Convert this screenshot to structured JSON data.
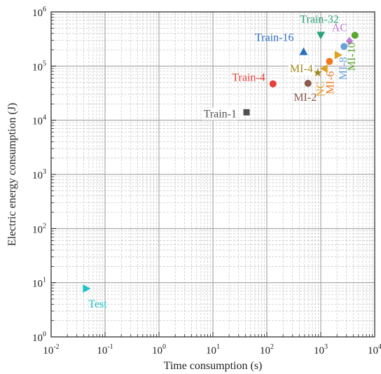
{
  "chart_data": {
    "type": "scatter",
    "title": "",
    "xlabel": "Time consumption (s)",
    "ylabel": "Electric energy consumption (J)",
    "xscale": "log",
    "yscale": "log",
    "xlim": [
      0.01,
      10000
    ],
    "ylim": [
      1,
      1000000
    ],
    "x_ticks": [
      {
        "base": "10",
        "exp": "-2"
      },
      {
        "base": "10",
        "exp": "-1"
      },
      {
        "base": "10",
        "exp": "0"
      },
      {
        "base": "10",
        "exp": "1"
      },
      {
        "base": "10",
        "exp": "2"
      },
      {
        "base": "10",
        "exp": "3"
      },
      {
        "base": "10",
        "exp": "4"
      }
    ],
    "y_ticks": [
      {
        "base": "10",
        "exp": "0"
      },
      {
        "base": "10",
        "exp": "1"
      },
      {
        "base": "10",
        "exp": "2"
      },
      {
        "base": "10",
        "exp": "3"
      },
      {
        "base": "10",
        "exp": "4"
      },
      {
        "base": "10",
        "exp": "5"
      },
      {
        "base": "10",
        "exp": "6"
      }
    ],
    "grid": "major solid, minor dashed",
    "points": [
      {
        "label": "Test",
        "x": 0.045,
        "y": 7.8,
        "color": "#20c4c8",
        "marker": "triangle-right"
      },
      {
        "label": "Train-1",
        "x": 42,
        "y": 14000,
        "color": "#505050",
        "marker": "square"
      },
      {
        "label": "Train-4",
        "x": 130,
        "y": 47000,
        "color": "#e8403a",
        "marker": "circle"
      },
      {
        "label": "MI-2",
        "x": 580,
        "y": 48000,
        "color": "#8a5a4a",
        "marker": "circle"
      },
      {
        "label": "Train-16",
        "x": 480,
        "y": 185000,
        "color": "#2a6fc0",
        "marker": "triangle-up"
      },
      {
        "label": "Train-32",
        "x": 1000,
        "y": 370000,
        "color": "#2aa37a",
        "marker": "triangle-down"
      },
      {
        "label": "MI-4",
        "x": 880,
        "y": 75000,
        "color": "#a08a20",
        "marker": "star"
      },
      {
        "label": "NC",
        "x": 1150,
        "y": 90000,
        "color": "#e0a020",
        "marker": "triangle-left"
      },
      {
        "label": "MI-6",
        "x": 1450,
        "y": 122000,
        "color": "#f07820",
        "marker": "circle"
      },
      {
        "label": "",
        "x": 2100,
        "y": 160000,
        "color": "#e0a020",
        "marker": "triangle-right"
      },
      {
        "label": "MI-8",
        "x": 2700,
        "y": 230000,
        "color": "#6aa0d8",
        "marker": "circle"
      },
      {
        "label": "AC",
        "x": 3400,
        "y": 290000,
        "color": "#c07ad8",
        "marker": "diamond"
      },
      {
        "label": "MI-10",
        "x": 4300,
        "y": 370000,
        "color": "#5aa830",
        "marker": "circle"
      }
    ]
  }
}
